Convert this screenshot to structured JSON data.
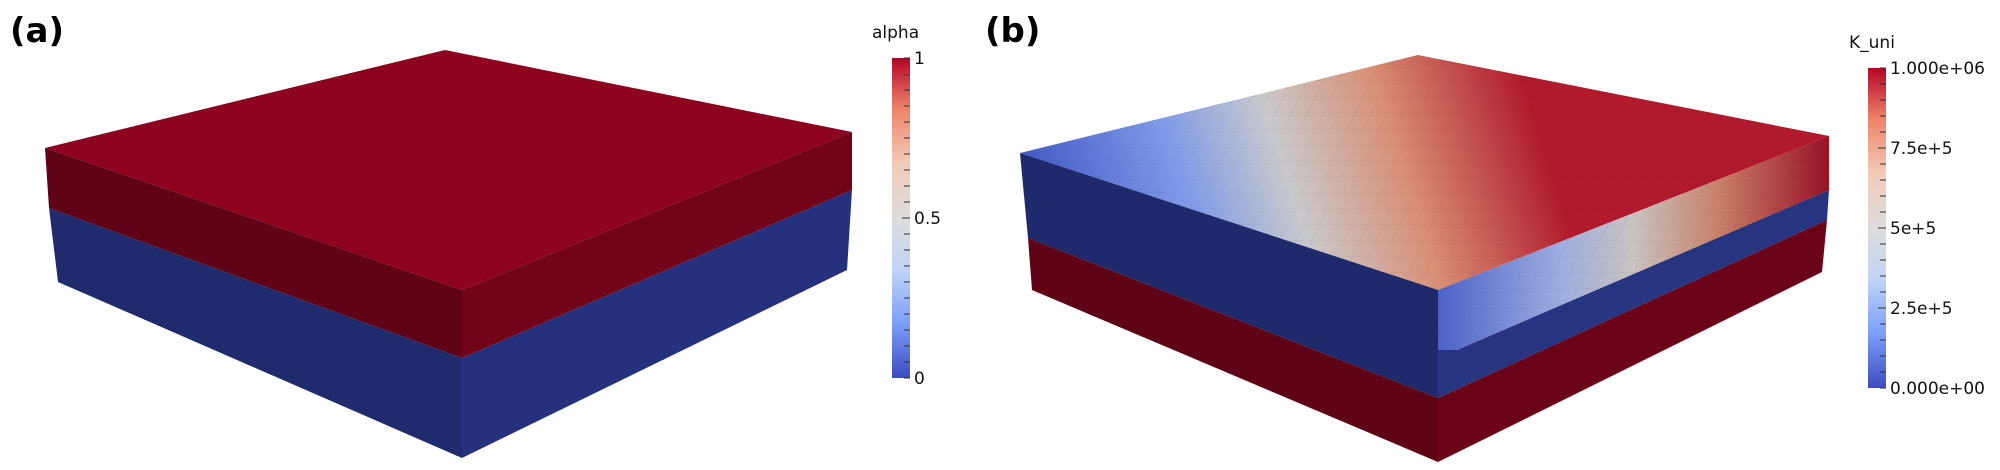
{
  "panels": [
    {
      "label": "(a)",
      "colorbar": {
        "title": "alpha",
        "ticks": [
          "1",
          "0.5",
          "0"
        ],
        "colors": [
          "#3b4cc0",
          "#7b9ff9",
          "#c0d4f5",
          "#dddcdc",
          "#f2cbb7",
          "#ee8468",
          "#b40426"
        ]
      },
      "layers": {
        "top": "red",
        "bottom": "blue"
      }
    },
    {
      "label": "(b)",
      "colorbar": {
        "title": "K_uni",
        "ticks": [
          "1.000e+06",
          "7.5e+5",
          "5e+5",
          "2.5e+5",
          "0.000e+00"
        ],
        "colors": [
          "#3b4cc0",
          "#7b9ff9",
          "#c0d4f5",
          "#dddcdc",
          "#f2cbb7",
          "#ee8468",
          "#b40426"
        ]
      },
      "layers": {
        "top": "gradient",
        "middle": "blue",
        "bottom": "red"
      }
    }
  ],
  "colors": {
    "red_top": "#8e0320",
    "red_side_light": "#6e0419",
    "red_side_dark": "#5c0416",
    "blue_side_light": "#23307a",
    "blue_side_dark": "#1d2868"
  }
}
